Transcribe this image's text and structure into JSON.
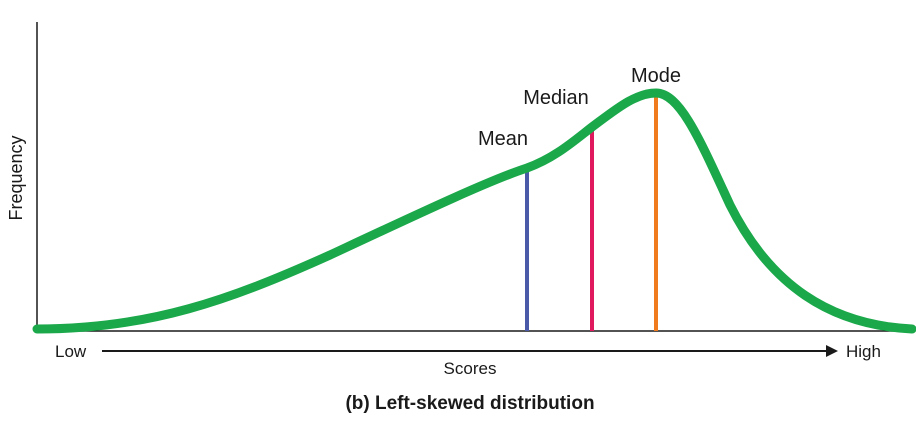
{
  "figure": {
    "y_axis_label": "Frequency",
    "x_axis_label": "Scores",
    "x_low_label": "Low",
    "x_high_label": "High",
    "caption": "(b) Left-skewed distribution"
  },
  "markers": {
    "mean": {
      "label": "Mean",
      "color": "#4a5aa8"
    },
    "median": {
      "label": "Median",
      "color": "#e0185e"
    },
    "mode": {
      "label": "Mode",
      "color": "#f07a1e"
    }
  },
  "colors": {
    "curve": "#1aa84a",
    "axis": "#1a1a1a"
  }
}
